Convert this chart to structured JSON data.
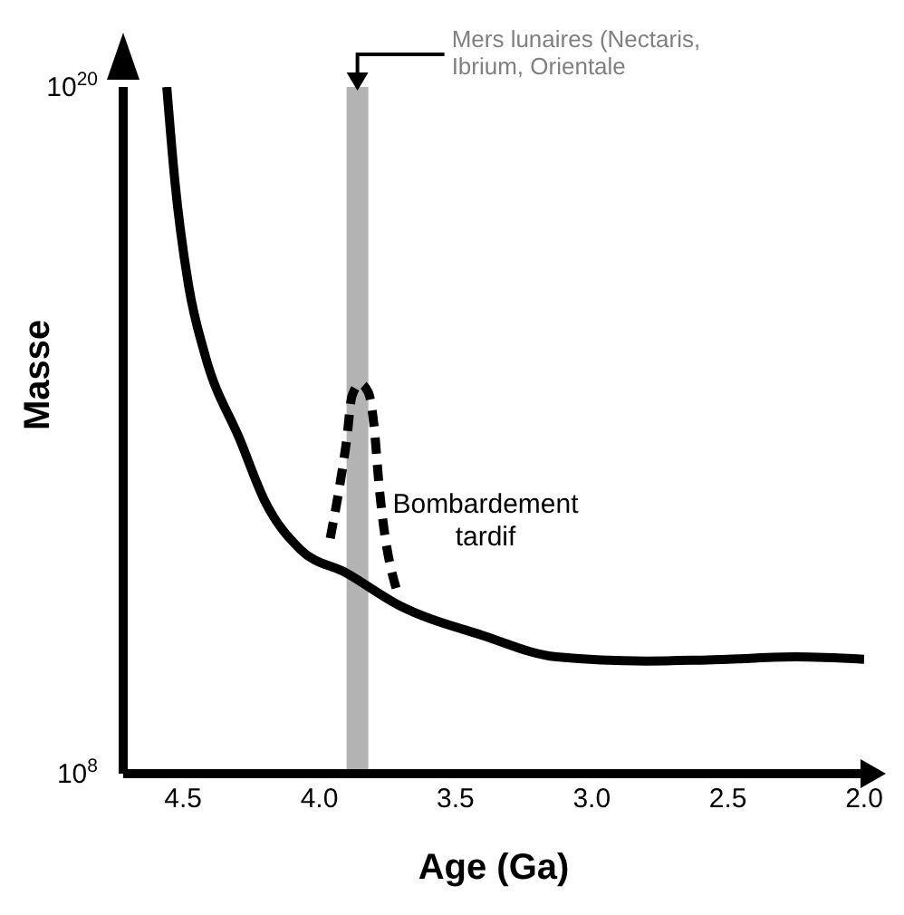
{
  "chart_data": {
    "type": "line",
    "xlabel": "Age (Ga)",
    "ylabel": "Masse",
    "log": "y",
    "xlim": [
      4.72,
      2.0
    ],
    "ylim": [
      100000000.0,
      1e+20
    ],
    "xticks": [
      {
        "value": 4.5,
        "label": "4.5"
      },
      {
        "value": 4,
        "label": "4.0"
      },
      {
        "value": 3.5,
        "label": "3.5"
      },
      {
        "value": 3,
        "label": "3.0"
      },
      {
        "value": 2.5,
        "label": "2.5"
      },
      {
        "value": 2,
        "label": "2.0"
      }
    ],
    "yticks": [
      {
        "value": 100000000.0,
        "label": "10$^{8}$"
      },
      {
        "value": 1e+20,
        "label": "10$^{20}$"
      }
    ],
    "marker": "none",
    "series": [
      {
        "color": "#000000",
        "line_style": "solid",
        "x": [
          4.56,
          4.53,
          4.48,
          4.42,
          4.29,
          4.2,
          4.07,
          3.9,
          3.71,
          3.4,
          3.13,
          2.8,
          2.5,
          2.25,
          2.0
        ],
        "values": [
          1e+20,
          2.2e+18,
          3.4e+16,
          2100000000000000.0,
          66000000000000.0,
          5800000000000.0,
          830000000000.0,
          320000000000.0,
          89000000000.0,
          26000000000.0,
          11000000000.0,
          9300000000.0,
          10000000000.0,
          11000000000.0,
          10000000000.0
        ]
      },
      {
        "color": "#000000",
        "line_style": "dashed",
        "x": [
          3.96,
          3.93,
          3.9,
          3.88,
          3.85,
          3.82,
          3.8,
          3.78,
          3.71
        ],
        "values": [
          1300000000000.0,
          7900000000000.0,
          66000000000000.0,
          400000000000000.0,
          650000000000000.0,
          460000000000000.0,
          130000000000000.0,
          10000000000000.0,
          130000000000.0
        ]
      }
    ],
    "bands": [
      {
        "axis": "x",
        "from": 3.9,
        "to": 3.82,
        "label": "Mers lunaires (Nectaris, Ibrium, Orientale",
        "color": "#b3b3b3"
      }
    ],
    "annotations": [
      "Bombardement tardif"
    ]
  }
}
